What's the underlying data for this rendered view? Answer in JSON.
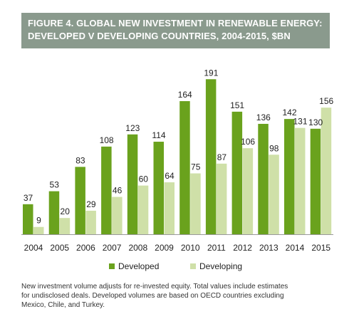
{
  "figure": {
    "title_line1": "FIGURE 4. GLOBAL NEW INVESTMENT IN RENEWABLE ENERGY:",
    "title_line2": "DEVELOPED V DEVELOPING COUNTRIES, 2004-2015, $BN"
  },
  "note": {
    "line1": "New investment volume adjusts for re-invested equity.  Total values include estimates",
    "line2": "for undisclosed deals. Developed volumes are based on OECD countries excluding",
    "line3": "Mexico, Chile, and Turkey."
  },
  "colors": {
    "header_bg": "#8a9a8d",
    "developed": "#6aa21d",
    "developing": "#cfe0a8"
  },
  "chart_data": {
    "type": "bar",
    "categories": [
      "2004",
      "2005",
      "2006",
      "2007",
      "2008",
      "2009",
      "2010",
      "2011",
      "2012",
      "2013",
      "2014",
      "2015"
    ],
    "series": [
      {
        "name": "Developed",
        "values": [
          37,
          53,
          83,
          108,
          123,
          114,
          164,
          191,
          151,
          136,
          142,
          130
        ]
      },
      {
        "name": "Developing",
        "values": [
          9,
          20,
          29,
          46,
          60,
          64,
          75,
          87,
          106,
          98,
          131,
          156
        ]
      }
    ],
    "ylim": [
      0,
      200
    ],
    "grid": false,
    "legend": "bottom"
  }
}
